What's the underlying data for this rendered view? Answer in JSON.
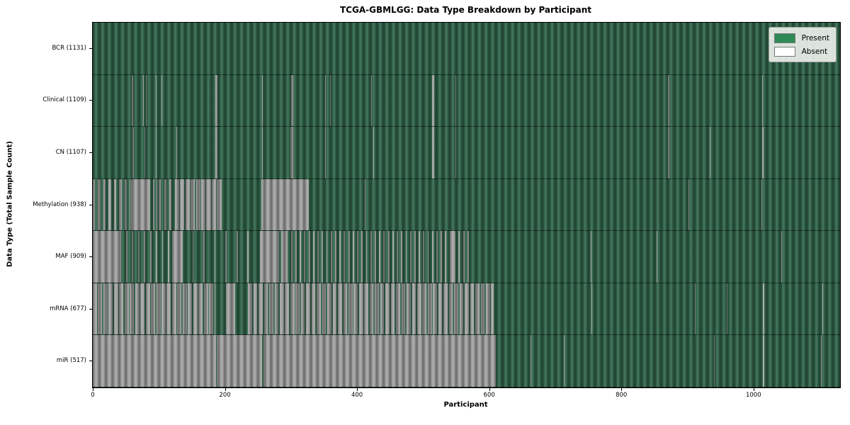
{
  "colors": {
    "present_fill": "#31654a",
    "absent_fill": "#a4a4a4",
    "legend_present": "#2e8b57",
    "legend_absent": "#ffffff",
    "plot_border": "#000000"
  },
  "chart_data": {
    "type": "heatmap",
    "title": "TCGA-GBMLGG: Data Type Breakdown by Participant",
    "xlabel": "Participant",
    "ylabel": "Data Type (Total Sample Count)",
    "x_ticks": [
      0,
      200,
      400,
      600,
      800,
      1000
    ],
    "x_range": [
      0,
      1131
    ],
    "grid": false,
    "legend_position": "upper right",
    "legend": [
      {
        "label": "Present",
        "color": "#2e8b57"
      },
      {
        "label": "Absent",
        "color": "#ffffff"
      }
    ],
    "rows": [
      {
        "name": "BCR",
        "label": "BCR (1131)",
        "total": 1131,
        "absent_segments": [],
        "mixed_segments": []
      },
      {
        "name": "Clinical",
        "label": "Clinical (1109)",
        "total": 1109,
        "absent_segments": [
          [
            59,
            61
          ],
          [
            76,
            77
          ],
          [
            80,
            81
          ],
          [
            95,
            96
          ],
          [
            104,
            105
          ],
          [
            185,
            189
          ],
          [
            256,
            257
          ],
          [
            300,
            303
          ],
          [
            352,
            353
          ],
          [
            359,
            360
          ],
          [
            421,
            422
          ],
          [
            514,
            517
          ],
          [
            549,
            550
          ],
          [
            871,
            873
          ],
          [
            1013,
            1014
          ]
        ],
        "mixed_segments": []
      },
      {
        "name": "CN",
        "label": "CN (1107)",
        "total": 1107,
        "absent_segments": [
          [
            60,
            62
          ],
          [
            78,
            79
          ],
          [
            95,
            96
          ],
          [
            126,
            127
          ],
          [
            185,
            189
          ],
          [
            256,
            257
          ],
          [
            299,
            303
          ],
          [
            352,
            353
          ],
          [
            424,
            425
          ],
          [
            513,
            517
          ],
          [
            549,
            550
          ],
          [
            871,
            873
          ],
          [
            934,
            935
          ],
          [
            1013,
            1015
          ]
        ],
        "mixed_segments": []
      },
      {
        "name": "Methylation",
        "label": "Methylation (938)",
        "total": 938,
        "absent_segments": [
          [
            58,
            87
          ],
          [
            91,
            93
          ],
          [
            97,
            98
          ],
          [
            255,
            327
          ],
          [
            412,
            413
          ],
          [
            902,
            903
          ],
          [
            1012,
            1013
          ]
        ],
        "mixed_segments": [
          [
            0,
            57,
            0.45
          ],
          [
            100,
            124,
            0.4
          ],
          [
            124,
            196,
            0.85
          ]
        ]
      },
      {
        "name": "MAF",
        "label": "MAF (909)",
        "total": 909,
        "absent_segments": [
          [
            0,
            41
          ],
          [
            120,
            134
          ],
          [
            253,
            282
          ],
          [
            285,
            295
          ],
          [
            540,
            547
          ],
          [
            754,
            755
          ],
          [
            853,
            854
          ],
          [
            1042,
            1043
          ]
        ],
        "mixed_segments": [
          [
            41,
            120,
            0.22
          ],
          [
            134,
            250,
            0.12
          ],
          [
            300,
            540,
            0.3
          ],
          [
            547,
            570,
            0.3
          ]
        ]
      },
      {
        "name": "mRNA",
        "label": "mRNA (677)",
        "total": 677,
        "absent_segments": [
          [
            202,
            215
          ],
          [
            755,
            756
          ],
          [
            911,
            912
          ],
          [
            960,
            961
          ],
          [
            1014,
            1016
          ],
          [
            1104,
            1105
          ]
        ],
        "mixed_segments": [
          [
            0,
            185,
            0.8
          ],
          [
            235,
            607,
            0.75
          ]
        ]
      },
      {
        "name": "miR",
        "label": "miR (517)",
        "total": 517,
        "absent_segments": [
          [
            0,
            186
          ],
          [
            188,
            256
          ],
          [
            258,
            610
          ],
          [
            662,
            663
          ],
          [
            713,
            714
          ],
          [
            940,
            941
          ],
          [
            1014,
            1016
          ],
          [
            1102,
            1103
          ]
        ],
        "mixed_segments": []
      }
    ]
  }
}
